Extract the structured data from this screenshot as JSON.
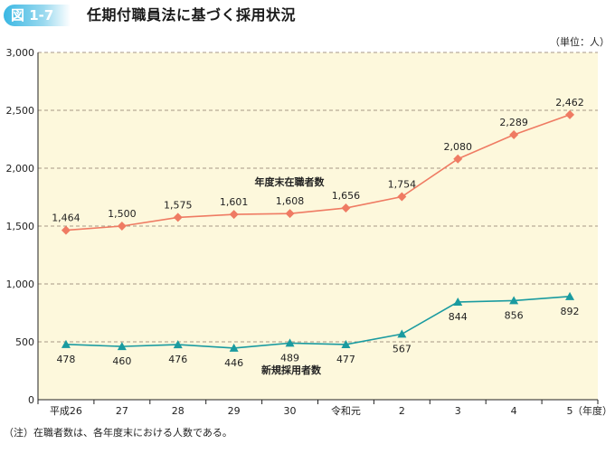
{
  "figure": {
    "number": "図 1-7",
    "title": "任期付職員法に基づく採用状況",
    "unit": "（単位：人）",
    "note": "（注）在職者数は、各年度末における人数である。"
  },
  "chart_data": {
    "type": "line",
    "categories": [
      "平成26",
      "27",
      "28",
      "29",
      "30",
      "令和元",
      "2",
      "3",
      "4",
      "5"
    ],
    "x_axis_suffix": "（年度）",
    "ylim": [
      0,
      3000
    ],
    "yticks": [
      0,
      500,
      1000,
      1500,
      2000,
      2500,
      3000
    ],
    "ytick_labels": [
      "0",
      "500",
      "1,000",
      "1,500",
      "2,000",
      "2,500",
      "3,000"
    ],
    "grid": "horizontal-dashed",
    "series": [
      {
        "name": "年度末在職者数",
        "marker": "diamond",
        "color": "#ef7b63",
        "values": [
          1464,
          1500,
          1575,
          1601,
          1608,
          1656,
          1754,
          2080,
          2289,
          2462
        ],
        "labels": [
          "1,464",
          "1,500",
          "1,575",
          "1,601",
          "1,608",
          "1,656",
          "1,754",
          "2,080",
          "2,289",
          "2,462"
        ],
        "label_position": "above"
      },
      {
        "name": "新規採用者数",
        "marker": "triangle",
        "color": "#1a9ba0",
        "values": [
          478,
          460,
          476,
          446,
          489,
          477,
          567,
          844,
          856,
          892
        ],
        "labels": [
          "478",
          "460",
          "476",
          "446",
          "489",
          "477",
          "567",
          "844",
          "856",
          "892"
        ],
        "label_position": "below"
      }
    ],
    "plot_background": "#fdf8dc"
  }
}
